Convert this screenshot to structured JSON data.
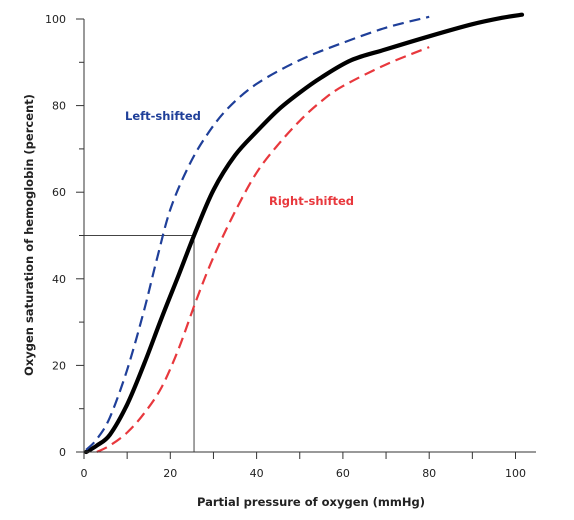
{
  "chart_data": {
    "type": "line",
    "xlabel": "Partial pressure of oxygen (mmHg)",
    "ylabel": "Oxygen saturation of hemoglobin (percent)",
    "xlim": [
      0,
      105
    ],
    "ylim": [
      0,
      100
    ],
    "x_major_ticks": [
      0,
      20,
      40,
      60,
      80,
      100
    ],
    "x_minor_ticks": [
      10,
      30,
      50,
      70,
      90
    ],
    "y_major_ticks": [
      0,
      20,
      40,
      60,
      80,
      100
    ],
    "y_minor_ticks": [
      10,
      30,
      50,
      70,
      90
    ],
    "grid": false,
    "reference_lines": [
      {
        "type": "horizontal",
        "y": 50,
        "x_from": 0,
        "x_to": 25.5
      },
      {
        "type": "vertical",
        "x": 25.5,
        "y_from": 0,
        "y_to": 50
      }
    ],
    "series": [
      {
        "name": "",
        "style": "solid",
        "color": "#000000",
        "points": [
          [
            0.5,
            0
          ],
          [
            3,
            1.5
          ],
          [
            6,
            4
          ],
          [
            10,
            11
          ],
          [
            14,
            20.5
          ],
          [
            18,
            31
          ],
          [
            22,
            41
          ],
          [
            25.5,
            50
          ],
          [
            30,
            60.5
          ],
          [
            35,
            68.5
          ],
          [
            40,
            74
          ],
          [
            45,
            79
          ],
          [
            50,
            83
          ],
          [
            55,
            86.5
          ],
          [
            62,
            90.5
          ],
          [
            70,
            93
          ],
          [
            80,
            96
          ],
          [
            90,
            98.8
          ],
          [
            97,
            100.3
          ],
          [
            101.5,
            101
          ]
        ]
      },
      {
        "name": "Left-shifted",
        "style": "dashed",
        "color": "#1f3f99",
        "points": [
          [
            0.5,
            0.5
          ],
          [
            3,
            3
          ],
          [
            6,
            8
          ],
          [
            10,
            19
          ],
          [
            14,
            33
          ],
          [
            17,
            45
          ],
          [
            20,
            56
          ],
          [
            24,
            65.5
          ],
          [
            28,
            72.5
          ],
          [
            33,
            79
          ],
          [
            40,
            85
          ],
          [
            50,
            90.5
          ],
          [
            60,
            94.5
          ],
          [
            70,
            98
          ],
          [
            80,
            100.5
          ]
        ]
      },
      {
        "name": "Right-shifted",
        "style": "dashed",
        "color": "#e8383d",
        "points": [
          [
            3,
            0
          ],
          [
            6,
            1.5
          ],
          [
            10,
            4.5
          ],
          [
            14,
            9
          ],
          [
            18,
            15
          ],
          [
            22,
            24
          ],
          [
            26,
            35
          ],
          [
            30,
            45
          ],
          [
            35,
            55.5
          ],
          [
            40,
            64.5
          ],
          [
            45,
            71
          ],
          [
            50,
            76.5
          ],
          [
            55,
            81
          ],
          [
            60,
            84.5
          ],
          [
            70,
            89.5
          ],
          [
            80,
            93.5
          ]
        ]
      }
    ]
  }
}
